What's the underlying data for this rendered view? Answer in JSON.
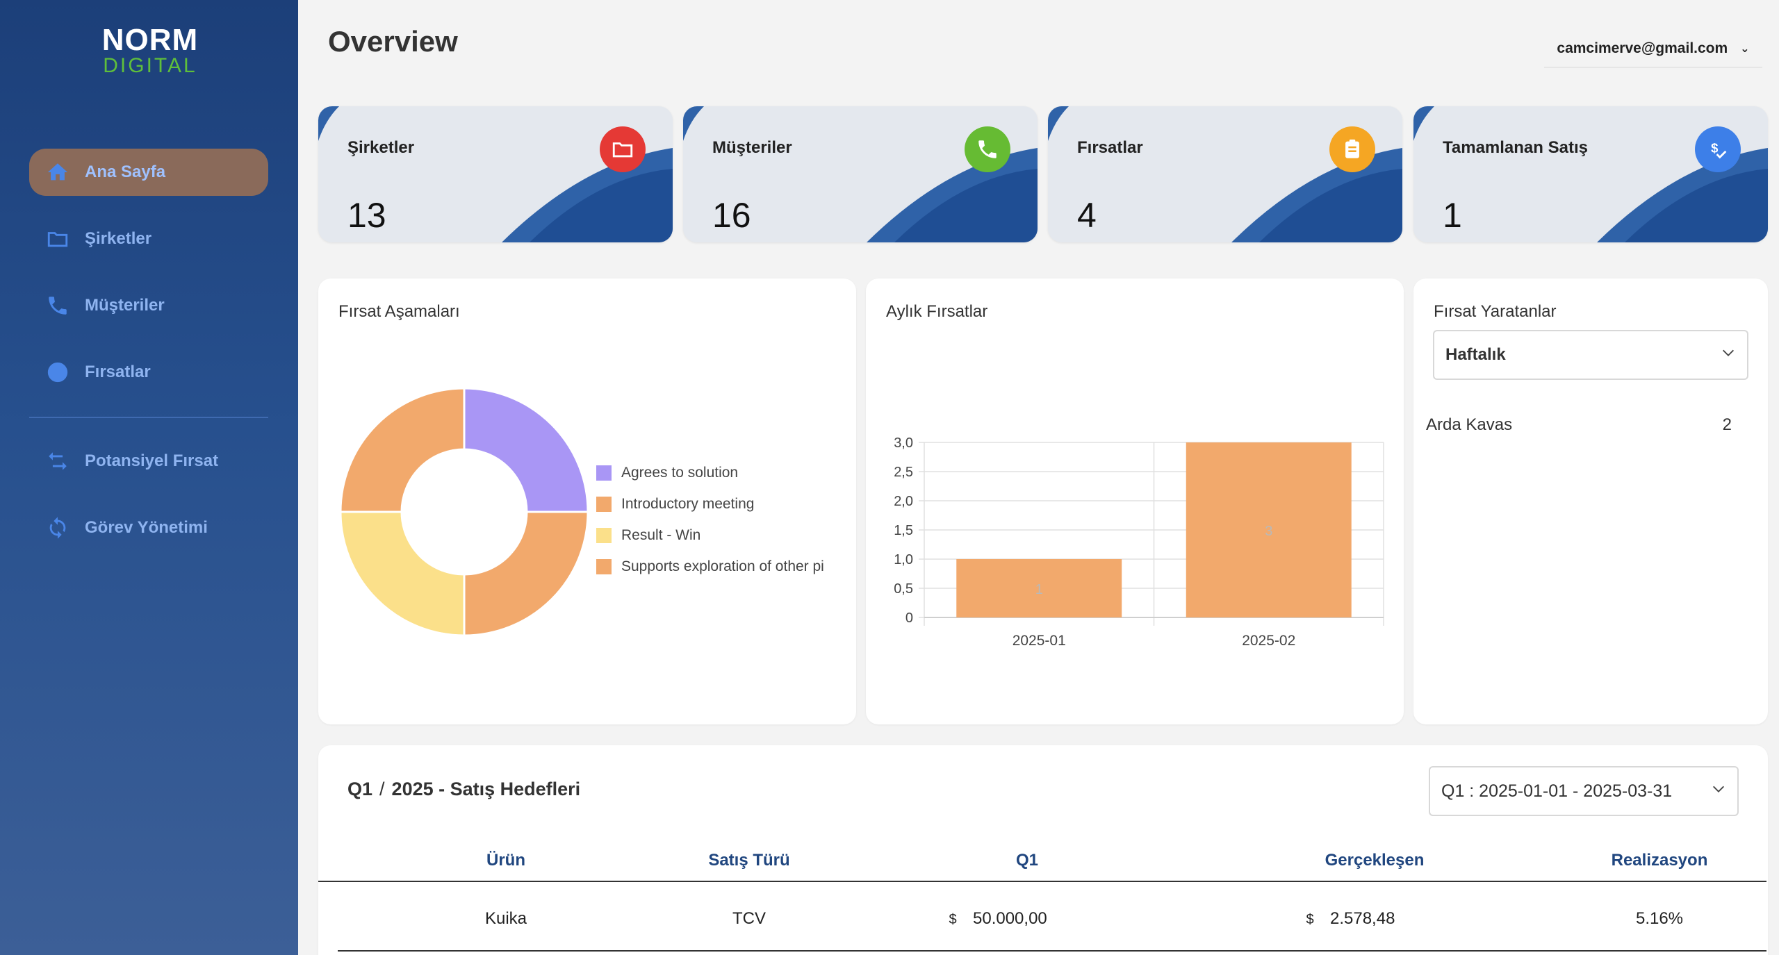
{
  "brand": {
    "logo_top": "NORM",
    "logo_bottom": "DIGITAL"
  },
  "sidebar": {
    "items": [
      {
        "label": "Ana Sayfa",
        "icon": "home-icon",
        "active": true
      },
      {
        "label": "Şirketler",
        "icon": "folder-icon"
      },
      {
        "label": "Müşteriler",
        "icon": "phone-icon"
      },
      {
        "label": "Fırsatlar",
        "icon": "circle-icon"
      },
      {
        "label": "Potansiyel Fırsat",
        "icon": "swap-arrows-icon"
      },
      {
        "label": "Görev Yönetimi",
        "icon": "refresh-icon"
      }
    ]
  },
  "header": {
    "title": "Overview",
    "user_email": "camcimerve@gmail.com"
  },
  "stats": [
    {
      "label": "Şirketler",
      "value": "13",
      "icon": "folder-icon",
      "color": "#e53935"
    },
    {
      "label": "Müşteriler",
      "value": "16",
      "icon": "phone-icon",
      "color": "#66bb33"
    },
    {
      "label": "Fırsatlar",
      "value": "4",
      "icon": "clipboard-icon",
      "color": "#f5a623"
    },
    {
      "label": "Tamamlanan Satış",
      "value": "1",
      "icon": "dollar-check-icon",
      "color": "#3d7fe8"
    }
  ],
  "stages_panel": {
    "title": "Fırsat Aşamaları",
    "chart_data": {
      "type": "pie",
      "donut": true,
      "categories": [
        "Agrees to solution",
        "Introductory meeting",
        "Result - Win",
        "Supports exploration of other pi"
      ],
      "values": [
        1,
        1,
        1,
        1
      ],
      "colors": [
        "#a996f5",
        "#f2a96c",
        "#fbe08a",
        "#f2a96c"
      ],
      "legend_position": "right"
    }
  },
  "monthly_panel": {
    "title": "Aylık Fırsatlar",
    "chart_data": {
      "type": "bar",
      "categories": [
        "2025-01",
        "2025-02"
      ],
      "values": [
        1,
        3
      ],
      "data_labels": [
        "1",
        "3"
      ],
      "ylim": [
        0,
        3
      ],
      "yticks": [
        "0",
        "0,5",
        "1,0",
        "1,5",
        "2,0",
        "2,5",
        "3,0"
      ],
      "grid": true,
      "color": "#f2a96c"
    }
  },
  "creators_panel": {
    "title": "Fırsat Yaratanlar",
    "period_select": "Haftalık",
    "rows": [
      {
        "name": "Arda Kavas",
        "count": "2"
      }
    ]
  },
  "targets": {
    "title_q": "Q1",
    "title_sep": "/",
    "title_rest": "2025 - Satış Hedefleri",
    "period_select": "Q1 : 2025-01-01 - 2025-03-31",
    "columns": [
      "Ürün",
      "Satış Türü",
      "Q1",
      "Gerçekleşen",
      "Realizasyon"
    ],
    "rows": [
      {
        "product": "Kuika",
        "type": "TCV",
        "currency": "$",
        "target": "50.000,00",
        "actual_currency": "$",
        "actual": "2.578,48",
        "realization": "5.16%"
      }
    ]
  }
}
